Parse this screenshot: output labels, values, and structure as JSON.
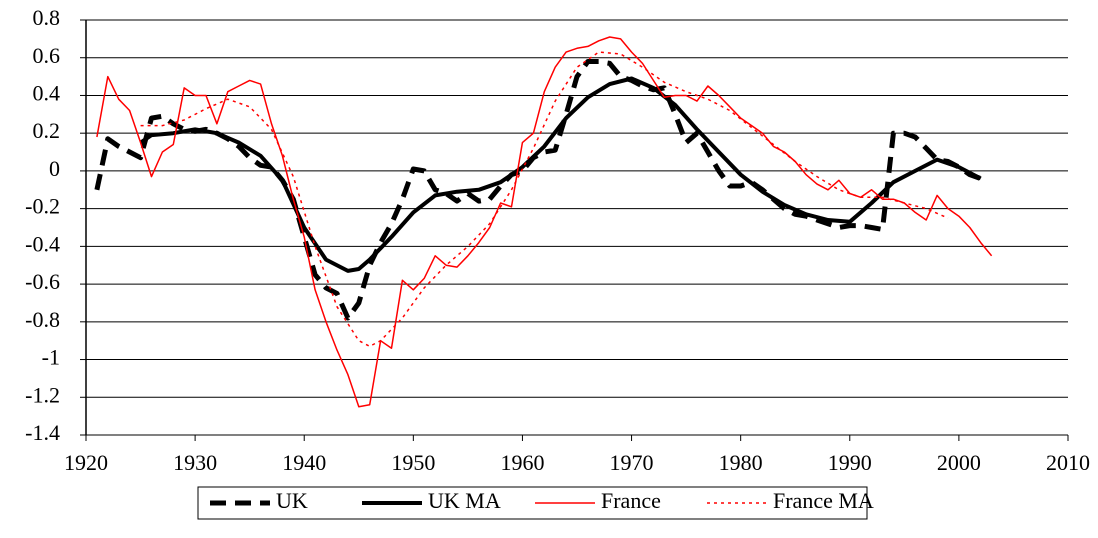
{
  "chart_data": {
    "type": "line",
    "xlim": [
      1920,
      2010
    ],
    "xticks": [
      1920,
      1930,
      1940,
      1950,
      1960,
      1970,
      1980,
      1990,
      2000,
      2010
    ],
    "ylim": [
      -1.4,
      0.8
    ],
    "yticks": [
      -1.4,
      -1.2,
      -1,
      -0.8,
      -0.6,
      -0.4,
      -0.2,
      0,
      0.2,
      0.4,
      0.6,
      0.8
    ],
    "grid": true,
    "legend": "bottom",
    "series": [
      {
        "name": "UK",
        "color": "#000000",
        "style": "dash",
        "width": 5,
        "x": [
          1921,
          1922,
          1923,
          1924,
          1925,
          1926,
          1927,
          1928,
          1929,
          1930,
          1931,
          1932,
          1933,
          1934,
          1935,
          1936,
          1937,
          1938,
          1939,
          1940,
          1941,
          1942,
          1943,
          1944,
          1945,
          1946,
          1947,
          1948,
          1949,
          1950,
          1951,
          1952,
          1953,
          1954,
          1955,
          1956,
          1957,
          1958,
          1959,
          1960,
          1961,
          1962,
          1963,
          1964,
          1965,
          1966,
          1967,
          1968,
          1969,
          1970,
          1971,
          1972,
          1973,
          1974,
          1975,
          1976,
          1977,
          1978,
          1979,
          1980,
          1981,
          1982,
          1983,
          1984,
          1985,
          1986,
          1987,
          1988,
          1989,
          1990,
          1991,
          1992,
          1993,
          1994,
          1995,
          1996,
          1997,
          1998,
          1999,
          2000,
          2001,
          2002
        ],
        "values": [
          -0.1,
          0.17,
          0.13,
          0.1,
          0.07,
          0.28,
          0.29,
          0.25,
          0.22,
          0.21,
          0.22,
          0.2,
          0.17,
          0.13,
          0.07,
          0.03,
          0.02,
          -0.05,
          -0.15,
          -0.35,
          -0.55,
          -0.62,
          -0.65,
          -0.78,
          -0.7,
          -0.5,
          -0.38,
          -0.28,
          -0.15,
          0.01,
          0.0,
          -0.1,
          -0.12,
          -0.16,
          -0.12,
          -0.16,
          -0.15,
          -0.08,
          -0.02,
          0.0,
          0.07,
          0.1,
          0.11,
          0.3,
          0.5,
          0.58,
          0.58,
          0.57,
          0.5,
          0.48,
          0.45,
          0.43,
          0.44,
          0.3,
          0.15,
          0.2,
          0.1,
          0.0,
          -0.08,
          -0.08,
          -0.06,
          -0.1,
          -0.15,
          -0.2,
          -0.23,
          -0.24,
          -0.26,
          -0.28,
          -0.3,
          -0.29,
          -0.29,
          -0.3,
          -0.31,
          0.2,
          0.2,
          0.18,
          0.12,
          0.06,
          0.05,
          0.02,
          -0.02,
          -0.04
        ]
      },
      {
        "name": "UK MA",
        "color": "#000000",
        "style": "solid",
        "width": 4,
        "x": [
          1925,
          1926,
          1928,
          1930,
          1932,
          1934,
          1936,
          1938,
          1940,
          1942,
          1944,
          1945,
          1946,
          1948,
          1950,
          1952,
          1954,
          1956,
          1958,
          1960,
          1962,
          1964,
          1966,
          1968,
          1970,
          1972,
          1974,
          1976,
          1978,
          1980,
          1982,
          1984,
          1986,
          1988,
          1990,
          1992,
          1994,
          1996,
          1998,
          2000,
          2002
        ],
        "values": [
          0.15,
          0.19,
          0.2,
          0.22,
          0.2,
          0.15,
          0.08,
          -0.05,
          -0.3,
          -0.47,
          -0.53,
          -0.52,
          -0.47,
          -0.35,
          -0.22,
          -0.13,
          -0.11,
          -0.1,
          -0.06,
          0.02,
          0.13,
          0.28,
          0.39,
          0.46,
          0.49,
          0.44,
          0.35,
          0.22,
          0.1,
          -0.02,
          -0.11,
          -0.18,
          -0.23,
          -0.26,
          -0.27,
          -0.17,
          -0.06,
          0.0,
          0.06,
          0.02,
          -0.04
        ]
      },
      {
        "name": "France",
        "color": "#ff0000",
        "style": "solid",
        "width": 1.5,
        "x": [
          1921,
          1922,
          1923,
          1924,
          1925,
          1926,
          1927,
          1928,
          1929,
          1930,
          1931,
          1932,
          1933,
          1934,
          1935,
          1936,
          1937,
          1938,
          1939,
          1940,
          1941,
          1942,
          1943,
          1944,
          1945,
          1946,
          1947,
          1948,
          1949,
          1950,
          1951,
          1952,
          1953,
          1954,
          1955,
          1956,
          1957,
          1958,
          1959,
          1960,
          1961,
          1962,
          1963,
          1964,
          1965,
          1966,
          1967,
          1968,
          1969,
          1970,
          1971,
          1972,
          1973,
          1974,
          1975,
          1976,
          1977,
          1978,
          1979,
          1980,
          1981,
          1982,
          1983,
          1984,
          1985,
          1986,
          1987,
          1988,
          1989,
          1990,
          1991,
          1992,
          1993,
          1994,
          1995,
          1996,
          1997,
          1998,
          1999,
          2000,
          2001,
          2002,
          2003
        ],
        "values": [
          0.18,
          0.5,
          0.38,
          0.32,
          0.15,
          -0.03,
          0.1,
          0.14,
          0.44,
          0.4,
          0.4,
          0.25,
          0.42,
          0.45,
          0.48,
          0.46,
          0.25,
          0.08,
          -0.15,
          -0.35,
          -0.63,
          -0.8,
          -0.95,
          -1.08,
          -1.25,
          -1.24,
          -0.9,
          -0.94,
          -0.58,
          -0.63,
          -0.57,
          -0.45,
          -0.5,
          -0.51,
          -0.45,
          -0.38,
          -0.3,
          -0.17,
          -0.19,
          0.15,
          0.2,
          0.42,
          0.55,
          0.63,
          0.65,
          0.66,
          0.69,
          0.71,
          0.7,
          0.63,
          0.57,
          0.48,
          0.39,
          0.4,
          0.4,
          0.37,
          0.45,
          0.4,
          0.34,
          0.28,
          0.24,
          0.2,
          0.13,
          0.1,
          0.05,
          -0.02,
          -0.07,
          -0.1,
          -0.05,
          -0.12,
          -0.14,
          -0.1,
          -0.15,
          -0.15,
          -0.17,
          -0.22,
          -0.26,
          -0.13,
          -0.2,
          -0.24,
          -0.3,
          -0.38,
          -0.45
        ]
      },
      {
        "name": "France MA",
        "color": "#ff0000",
        "style": "dot",
        "width": 1.5,
        "x": [
          1925,
          1927,
          1929,
          1931,
          1933,
          1935,
          1937,
          1939,
          1941,
          1943,
          1945,
          1946,
          1947,
          1949,
          1951,
          1953,
          1955,
          1957,
          1959,
          1961,
          1963,
          1965,
          1967,
          1969,
          1971,
          1973,
          1975,
          1977,
          1979,
          1981,
          1983,
          1985,
          1987,
          1989,
          1991,
          1993,
          1995,
          1997,
          1999
        ],
        "values": [
          0.24,
          0.24,
          0.27,
          0.33,
          0.38,
          0.34,
          0.22,
          -0.03,
          -0.4,
          -0.72,
          -0.9,
          -0.93,
          -0.9,
          -0.78,
          -0.62,
          -0.5,
          -0.4,
          -0.28,
          -0.1,
          0.12,
          0.37,
          0.55,
          0.63,
          0.62,
          0.55,
          0.47,
          0.42,
          0.38,
          0.32,
          0.23,
          0.14,
          0.05,
          -0.03,
          -0.1,
          -0.14,
          -0.14,
          -0.17,
          -0.2,
          -0.25
        ]
      }
    ]
  }
}
